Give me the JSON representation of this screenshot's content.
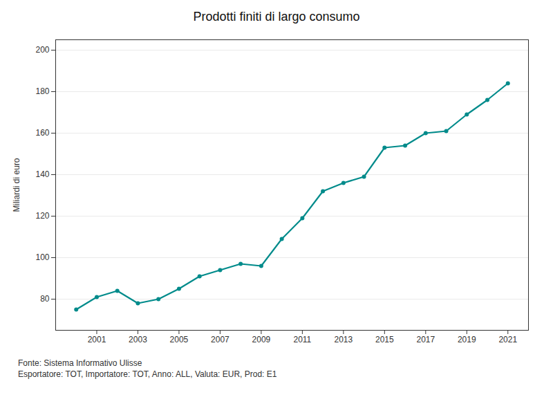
{
  "chart_data": {
    "type": "line",
    "title": "Prodotti finiti di largo consumo",
    "ylabel": "Miliardi di euro",
    "annotations": [
      "Fonte: Sistema Informativo Ulisse",
      "Esportatore: TOT, Importatore: TOT, Anno: ALL, Valuta: EUR, Prod: E1"
    ],
    "x": [
      2000,
      2001,
      2002,
      2003,
      2004,
      2005,
      2006,
      2007,
      2008,
      2009,
      2010,
      2011,
      2012,
      2013,
      2014,
      2015,
      2016,
      2017,
      2018,
      2019,
      2020,
      2021
    ],
    "values": [
      75,
      81,
      84,
      78,
      80,
      85,
      91,
      94,
      97,
      96,
      109,
      119,
      132,
      136,
      139,
      153,
      154,
      160,
      161,
      169,
      176,
      184
    ],
    "color": "#008B8B",
    "marker": "circle",
    "xlim": [
      1999,
      2022
    ],
    "xticks": [
      2001,
      2003,
      2005,
      2007,
      2009,
      2011,
      2013,
      2015,
      2017,
      2019,
      2021
    ],
    "ylim": [
      65,
      205
    ],
    "yticks": [
      80,
      100,
      120,
      140,
      160,
      180,
      200
    ],
    "grid": true
  }
}
